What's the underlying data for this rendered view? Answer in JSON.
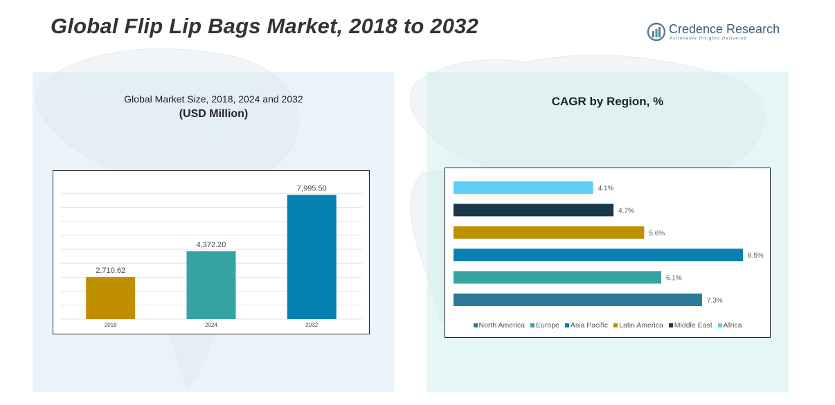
{
  "header": {
    "title": "Global Flip Lip Bags Market, 2018 to 2032",
    "brand_name": "Credence Research",
    "brand_tagline": "Actionable Insights Delivered"
  },
  "left_panel": {
    "title": "Global Market Size, 2018, 2024 and 2032",
    "subtitle": "(USD Million)"
  },
  "right_panel": {
    "title": "CAGR by Region, %"
  },
  "chart_data": [
    {
      "type": "bar",
      "title": "Global Market Size, 2018, 2024 and 2032",
      "subtitle": "(USD Million)",
      "categories": [
        "2018",
        "2024",
        "2032"
      ],
      "values": [
        2710.62,
        4372.2,
        7995.5
      ],
      "value_labels": [
        "2,710.62",
        "4,372.20",
        "7,995.50"
      ],
      "colors": [
        "#bf8f00",
        "#35a3a3",
        "#0580b0"
      ],
      "ylim": [
        0,
        9000
      ],
      "grid": true
    },
    {
      "type": "bar",
      "orientation": "horizontal",
      "title": "CAGR by Region, %",
      "categories": [
        "Africa",
        "Middle East",
        "Latin America",
        "Asia Pacific",
        "Europe",
        "North America"
      ],
      "values": [
        4.1,
        4.7,
        5.6,
        8.5,
        6.1,
        7.3
      ],
      "value_labels": [
        "4.1%",
        "4.7%",
        "5.6%",
        "8.5%",
        "6.1%",
        "7.3%"
      ],
      "colors": [
        "#5fcdf4",
        "#17394a",
        "#bf8f00",
        "#0580b0",
        "#35a3a3",
        "#2b7a98"
      ],
      "xlim": [
        0,
        8.5
      ],
      "legend": {
        "position": "bottom",
        "order": [
          "North America",
          "Europe",
          "Asia Pacific",
          "Latin America",
          "Middle East",
          "Africa"
        ],
        "colors": [
          "#2b7a98",
          "#35a3a3",
          "#0580b0",
          "#bf8f00",
          "#17394a",
          "#5fcdf4"
        ]
      }
    }
  ]
}
